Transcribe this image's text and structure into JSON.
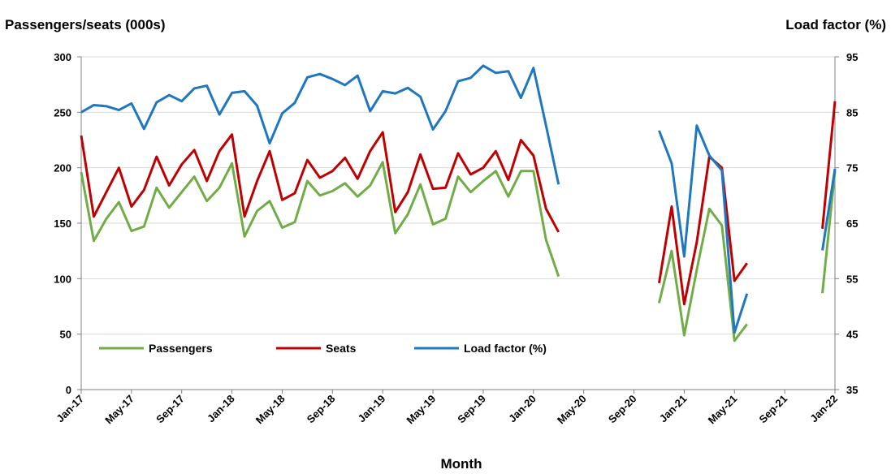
{
  "chart_data": {
    "type": "line",
    "xlabel": "Month",
    "ylabel_left": "Passengers/seats (000s)",
    "ylabel_right": "Load factor (%)",
    "ylim_left": [
      0,
      300
    ],
    "ylim_right": [
      35,
      95
    ],
    "yticks_left": [
      "0",
      "50",
      "100",
      "150",
      "200",
      "250",
      "300"
    ],
    "yticks_right": [
      "35",
      "45",
      "55",
      "65",
      "75",
      "85",
      "95"
    ],
    "x_tick_labels": [
      "Jan-17",
      "May-17",
      "Sep-17",
      "Jan-18",
      "May-18",
      "Sep-18",
      "Jan-19",
      "May-19",
      "Sep-19",
      "Jan-20",
      "May-20",
      "Sep-20",
      "Jan-21",
      "May-21",
      "Sep-21",
      "Jan-22"
    ],
    "months_count": 61,
    "first_month": "Jan-17",
    "last_month": "Jan-22",
    "legend": {
      "position": "lower-left",
      "entries": [
        "Passengers",
        "Seats",
        "Load factor (%)"
      ]
    },
    "colors": {
      "Passengers": "#70ad47",
      "Seats": "#c00000",
      "Load factor (%)": "#1f77bf",
      "grid": "#d9d9d9"
    },
    "grid": true,
    "series": [
      {
        "name": "Passengers",
        "axis": "left",
        "values": [
          196,
          134,
          154,
          169,
          143,
          147,
          182,
          164,
          178,
          192,
          170,
          182,
          204,
          138,
          161,
          170,
          146,
          151,
          188,
          175,
          179,
          186,
          174,
          184,
          205,
          141,
          158,
          185,
          149,
          154,
          192,
          178,
          188,
          197,
          174,
          197,
          197,
          135,
          102,
          null,
          null,
          null,
          null,
          null,
          null,
          null,
          78,
          125,
          49,
          108,
          163,
          148,
          44,
          59,
          null,
          null,
          null,
          null,
          null,
          87,
          197
        ]
      },
      {
        "name": "Seats",
        "axis": "left",
        "values": [
          229,
          156,
          178,
          200,
          165,
          180,
          210,
          184,
          203,
          216,
          188,
          215,
          230,
          156,
          188,
          215,
          171,
          177,
          207,
          191,
          197,
          209,
          190,
          215,
          232,
          160,
          178,
          212,
          181,
          182,
          213,
          194,
          200,
          215,
          189,
          225,
          211,
          163,
          142,
          null,
          null,
          null,
          null,
          null,
          null,
          null,
          96,
          165,
          77,
          133,
          210,
          200,
          98,
          114,
          null,
          null,
          null,
          null,
          null,
          145,
          260
        ]
      },
      {
        "name": "Load factor (%)",
        "axis": "right",
        "values": [
          85,
          86.3,
          86.1,
          85.4,
          86.6,
          82,
          86.8,
          88.1,
          87,
          89.3,
          89.8,
          84.6,
          88.5,
          88.8,
          86.2,
          79.4,
          84.8,
          86.7,
          91.3,
          91.9,
          91,
          89.9,
          91.6,
          85.2,
          88.8,
          88.4,
          89.4,
          87.8,
          81.9,
          85.2,
          90.6,
          91.2,
          93.4,
          92.1,
          92.4,
          87.6,
          93,
          82.6,
          72,
          null,
          null,
          null,
          null,
          null,
          null,
          null,
          81.7,
          75.8,
          59,
          82.6,
          77.2,
          74.5,
          45.3,
          52.3,
          null,
          null,
          null,
          null,
          null,
          60.1,
          74.8
        ]
      }
    ]
  }
}
